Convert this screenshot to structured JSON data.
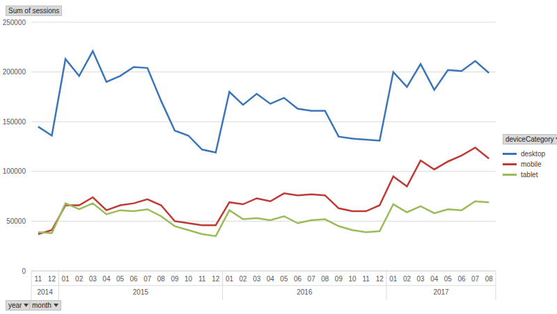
{
  "chart_data": {
    "type": "line",
    "title": "Sum of sessions",
    "legend_title": "deviceCategory",
    "x_fields": [
      "year",
      "month"
    ],
    "legend": "right",
    "grid": true,
    "categories": [
      "11",
      "12",
      "01",
      "02",
      "03",
      "04",
      "05",
      "06",
      "07",
      "08",
      "09",
      "10",
      "11",
      "12",
      "01",
      "02",
      "03",
      "04",
      "05",
      "06",
      "07",
      "08",
      "09",
      "10",
      "11",
      "12",
      "01",
      "02",
      "03",
      "04",
      "05",
      "06",
      "07",
      "08"
    ],
    "years": [
      "2014",
      "2014",
      "2015",
      "2015",
      "2015",
      "2015",
      "2015",
      "2015",
      "2015",
      "2015",
      "2015",
      "2015",
      "2015",
      "2015",
      "2016",
      "2016",
      "2016",
      "2016",
      "2016",
      "2016",
      "2016",
      "2016",
      "2016",
      "2016",
      "2016",
      "2016",
      "2017",
      "2017",
      "2017",
      "2017",
      "2017",
      "2017",
      "2017",
      "2017"
    ],
    "series": [
      {
        "name": "desktop",
        "color": "#3a75b9",
        "values": [
          145000,
          136000,
          213000,
          196000,
          221000,
          190000,
          196000,
          205000,
          204000,
          171000,
          141000,
          136000,
          122000,
          119000,
          180000,
          167000,
          178000,
          168000,
          174000,
          163000,
          161000,
          161000,
          135000,
          133000,
          132000,
          131000,
          200000,
          185000,
          208000,
          182000,
          202000,
          201000,
          211000,
          199000
        ]
      },
      {
        "name": "mobile",
        "color": "#be3a34",
        "values": [
          37000,
          41000,
          66000,
          66000,
          74000,
          61000,
          66000,
          68000,
          72000,
          66000,
          50000,
          48000,
          46000,
          46000,
          69000,
          67000,
          73000,
          70000,
          78000,
          76000,
          77000,
          76000,
          63000,
          60000,
          60000,
          66000,
          95000,
          85000,
          111000,
          102000,
          110000,
          116000,
          124000,
          113000
        ]
      },
      {
        "name": "tablet",
        "color": "#9bbb59",
        "values": [
          39000,
          38000,
          68000,
          62000,
          68000,
          57000,
          61000,
          60000,
          62000,
          55000,
          45000,
          41000,
          37000,
          35000,
          61000,
          52000,
          53000,
          51000,
          55000,
          48000,
          51000,
          52000,
          45000,
          41000,
          39000,
          40000,
          67000,
          59000,
          65000,
          58000,
          62000,
          61000,
          70000,
          69000
        ]
      }
    ],
    "ylim": [
      0,
      250000
    ],
    "yticks": [
      0,
      50000,
      100000,
      150000,
      200000,
      250000
    ]
  }
}
